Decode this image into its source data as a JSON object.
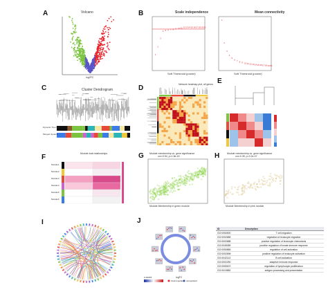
{
  "panels": {
    "A": {
      "label": "A",
      "title": "Volcano",
      "xlabel": "log2FC",
      "ylabel": "-log10(Pvalue)"
    },
    "B": {
      "label": "B",
      "title_left": "Scale independence",
      "title_right": "Mean connectivity",
      "xlabel_left": "Soft Threshold (power)",
      "xlabel_right": "Soft Threshold (power)",
      "ylabel_left": "Scale Free Topology Model Fit,signed R^2",
      "ylabel_right": "Mean Connectivity"
    },
    "C": {
      "label": "C",
      "title": "Cluster Dendrogram",
      "ylabel": "Height",
      "row1": "Dynamic Tree Cut",
      "row2": "Merged dynamic"
    },
    "D": {
      "label": "D",
      "title": "Network heatmap plot, all genes"
    },
    "E": {
      "label": "E"
    },
    "F": {
      "label": "F",
      "title": "Module-trait relationships",
      "rows": [
        "Module1",
        "Module2",
        "Module3",
        "Module4",
        "Module5",
        "Module6"
      ]
    },
    "G": {
      "label": "G",
      "title": "Module membership vs. gene significance",
      "subtitle": "cor=0.54, p=1.8e-40",
      "xlabel": "Module Membership in green module",
      "ylabel": "Gene significance for trait"
    },
    "H": {
      "label": "H",
      "title": "Module membership vs. gene significance",
      "subtitle": "cor=0.35, p=3.2e-07",
      "xlabel": "Module Membership in pink module",
      "ylabel": "Gene significance for trait"
    },
    "I": {
      "label": "I"
    },
    "J": {
      "label": "J",
      "legend_logfc": "logFC",
      "legend_zscore": "z-score",
      "legend_down": "downregulated",
      "legend_up": "upregulated"
    },
    "table": {
      "headers": [
        "ID",
        "Description"
      ],
      "rows": [
        [
          "GO:0050900",
          "T cell migration"
        ],
        [
          "GO:0002685",
          "regulation of leukocyte migration"
        ],
        [
          "GO:0002688",
          "positive regulation of leukocyte chemotaxis"
        ],
        [
          "GO:0045089",
          "positive regulation of innate immune response"
        ],
        [
          "GO:0050865",
          "regulation of cell activation"
        ],
        [
          "GO:0002696",
          "positive regulation of leukocyte activation"
        ],
        [
          "GO:0042113",
          "B cell activation"
        ],
        [
          "GO:0002250",
          "adaptive immune response"
        ],
        [
          "GO:0050670",
          "regulation of lymphocyte proliferation"
        ],
        [
          "GO:0019882",
          "antigen processing and presentation"
        ]
      ]
    }
  },
  "colors": {
    "up": "#e8242a",
    "down": "#7cc43f",
    "ns": "#5a56c9",
    "heat_hi": "#c0101a",
    "heat_mid": "#f4a64a",
    "heat_lo": "#fbe8b8",
    "green_pts": "#8fd24e",
    "gold_pts": "#d8c080"
  }
}
